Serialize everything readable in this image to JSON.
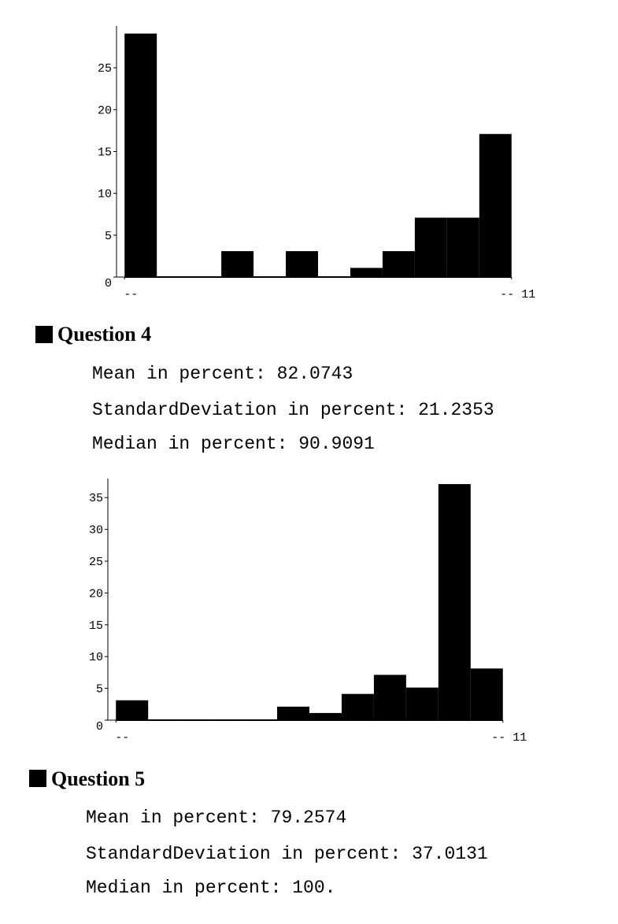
{
  "chart_data": [
    {
      "type": "histogram",
      "bins": [
        0,
        1,
        2,
        3,
        4,
        5,
        6,
        7,
        8,
        9,
        10,
        11,
        12
      ],
      "values": [
        29,
        0,
        0,
        3,
        0,
        3,
        0,
        1,
        3,
        7,
        7,
        17
      ],
      "color": "#000000",
      "xlim": [
        -0.25,
        12.25
      ],
      "xticks": [
        {
          "value": 0,
          "label": "--"
        },
        {
          "value": 12,
          "label": "-- 11"
        }
      ],
      "ylim": [
        0,
        30
      ],
      "yticks": [
        0,
        5,
        10,
        15,
        20,
        25
      ]
    },
    {
      "type": "histogram",
      "bins": [
        0,
        1,
        2,
        3,
        4,
        5,
        6,
        7,
        8,
        9,
        10,
        11,
        12
      ],
      "values": [
        3,
        0,
        0,
        0,
        0,
        2,
        1,
        4,
        7,
        5,
        37,
        8
      ],
      "color": "#000000",
      "xlim": [
        -0.25,
        12.25
      ],
      "xticks": [
        {
          "value": 0,
          "label": "--"
        },
        {
          "value": 12,
          "label": "-- 11"
        }
      ],
      "ylim": [
        0,
        38
      ],
      "yticks": [
        0,
        5,
        10,
        15,
        20,
        25,
        30,
        35
      ]
    }
  ],
  "sections": [
    {
      "title": "Question 4",
      "lines": [
        "Mean in percent: 82.0743",
        "StandardDeviation in percent: 21.2353",
        "Median in percent: 90.9091"
      ]
    },
    {
      "title": "Question 5",
      "lines": [
        "Mean in percent: 79.2574",
        "StandardDeviation in percent: 37.0131",
        "Median in percent: 100."
      ]
    }
  ]
}
